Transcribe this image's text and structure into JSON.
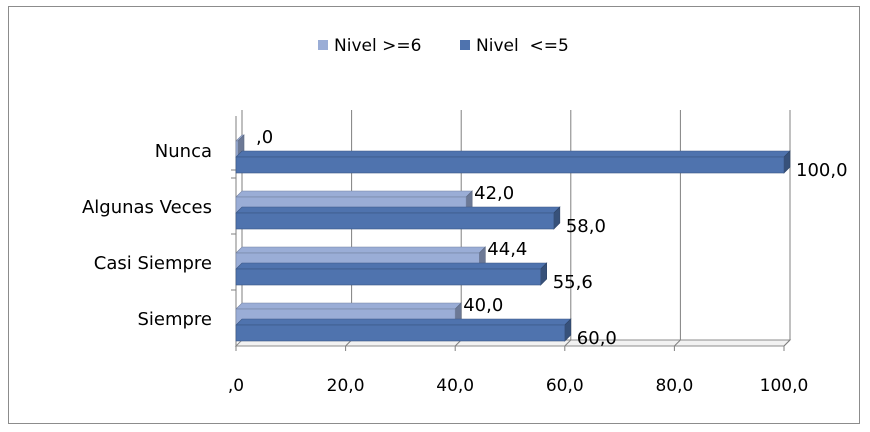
{
  "chart_data": {
    "type": "bar",
    "orientation": "horizontal",
    "style": "3d-clustered",
    "categories": [
      "Nunca",
      "Algunas Veces",
      "Casi Siempre",
      "Siempre"
    ],
    "series": [
      {
        "name": "Nivel >=6",
        "values": [
          0,
          42,
          44.4,
          40
        ],
        "labels": [
          ",0",
          "42,0",
          "44,4",
          "40,0"
        ],
        "color": "#9aadd6"
      },
      {
        "name": "Nivel  <=5",
        "values": [
          100,
          58,
          55.6,
          60
        ],
        "labels": [
          "100,0",
          "58,0",
          "55,6",
          "60,0"
        ],
        "color": "#4f73ae"
      }
    ],
    "x_ticks": [
      ",0",
      "20,0",
      "40,0",
      "60,0",
      "80,0",
      "100,0"
    ],
    "xlim": [
      0,
      100
    ],
    "grid": true,
    "legend_position": "top"
  }
}
